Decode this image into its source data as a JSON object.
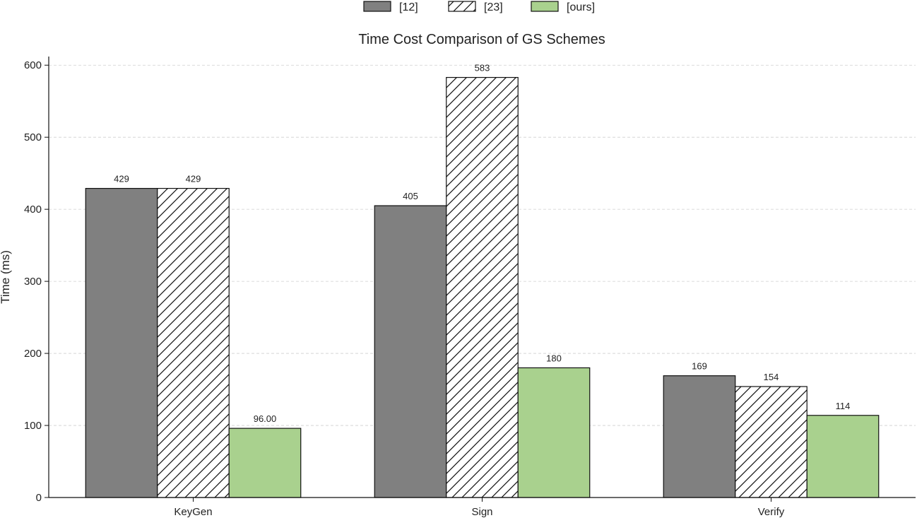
{
  "chart_data": {
    "type": "bar",
    "title": "Time Cost Comparison of GS Schemes",
    "xlabel": "",
    "ylabel": "Time (ms)",
    "categories": [
      "KeyGen",
      "Sign",
      "Verify"
    ],
    "series": [
      {
        "name": "[12]",
        "values": [
          429,
          405,
          169
        ],
        "labels": [
          "429",
          "405",
          "169"
        ],
        "color": "#808080",
        "pattern": "solid"
      },
      {
        "name": "[23]",
        "values": [
          429,
          583,
          154
        ],
        "labels": [
          "429",
          "583",
          "154"
        ],
        "color": "#ffffff",
        "pattern": "hatch"
      },
      {
        "name": "[ours]",
        "values": [
          96,
          180,
          114
        ],
        "labels": [
          "96.00",
          "180",
          "114"
        ],
        "color": "#a9d18e",
        "pattern": "solid"
      }
    ],
    "ylim": [
      0,
      612
    ],
    "yticks": [
      0,
      100,
      200,
      300,
      400,
      500,
      600
    ],
    "grid": "y-dashed",
    "legend_position": "top-center"
  }
}
